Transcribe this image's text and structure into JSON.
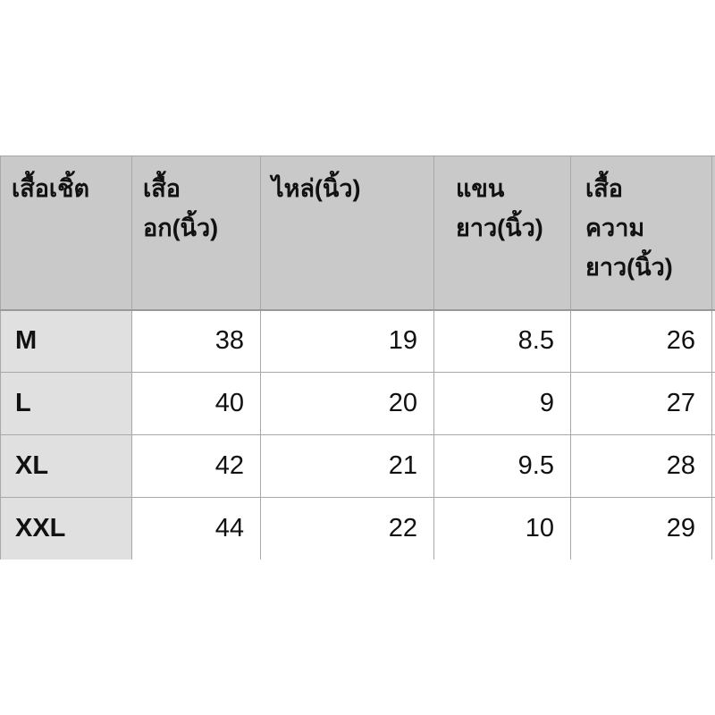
{
  "table": {
    "headers": [
      "เสื้อเชิ้ต",
      "เสื้อ อก(นิ้ว)",
      "ไหล่(นิ้ว)",
      "แขน ยาว(นิ้ว)",
      "เสื้อ ความ ยาว(นิ้ว)",
      ""
    ],
    "rows": [
      [
        "M",
        "38",
        "19",
        "8.5",
        "26",
        ""
      ],
      [
        "L",
        "40",
        "20",
        "9",
        "27",
        ""
      ],
      [
        "XL",
        "42",
        "21",
        "9.5",
        "28",
        ""
      ],
      [
        "XXL",
        "44",
        "22",
        "10",
        "29",
        ""
      ]
    ]
  },
  "colors": {
    "header_bg": "#c9c9c9",
    "size_col_bg": "#e0e0e0",
    "border": "#a8a8a8"
  }
}
